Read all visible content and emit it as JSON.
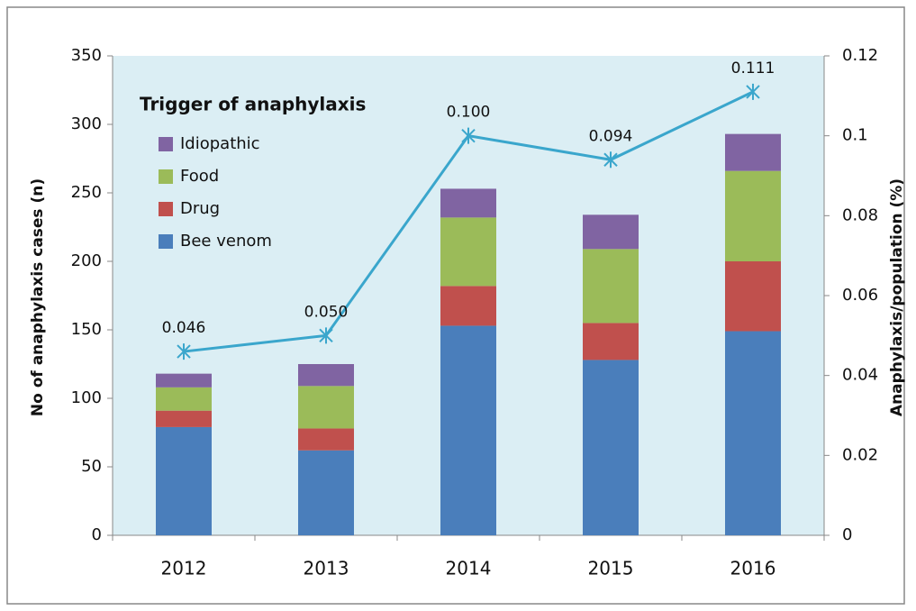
{
  "chart_data": {
    "type": "stacked_bar_line",
    "legend_title": "Trigger of anaphylaxis",
    "y_label": "No of anaphylaxis cases (n)",
    "y2_label": "Anaphylaxis/population (%)",
    "categories": [
      "2012",
      "2013",
      "2014",
      "2015",
      "2016"
    ],
    "series": [
      {
        "name": "Bee venom",
        "color": "#4a7ebb",
        "values": [
          79,
          62,
          153,
          128,
          149
        ]
      },
      {
        "name": "Drug",
        "color": "#c0504d",
        "values": [
          12,
          16,
          29,
          27,
          51
        ]
      },
      {
        "name": "Food",
        "color": "#9bbb59",
        "values": [
          17,
          31,
          50,
          54,
          66
        ]
      },
      {
        "name": "Idiopathic",
        "color": "#8064a2",
        "values": [
          10,
          16,
          21,
          25,
          27
        ]
      },
      {
        "name": "Anaphylaxis/population",
        "type": "line",
        "axis": "y2",
        "color": "#3aa6cc",
        "values": [
          0.046,
          0.05,
          0.1,
          0.094,
          0.111
        ],
        "value_labels": [
          "0.046",
          "0.050",
          "0.100",
          "0.094",
          "0.111"
        ]
      }
    ],
    "ylim": [
      0,
      350
    ],
    "yticks": [
      0,
      50,
      100,
      150,
      200,
      250,
      300,
      350
    ],
    "y2lim": [
      0,
      0.12
    ],
    "y2ticks": [
      0,
      0.02,
      0.04,
      0.06,
      0.08,
      0.1,
      0.12
    ],
    "legend": "upper left"
  }
}
